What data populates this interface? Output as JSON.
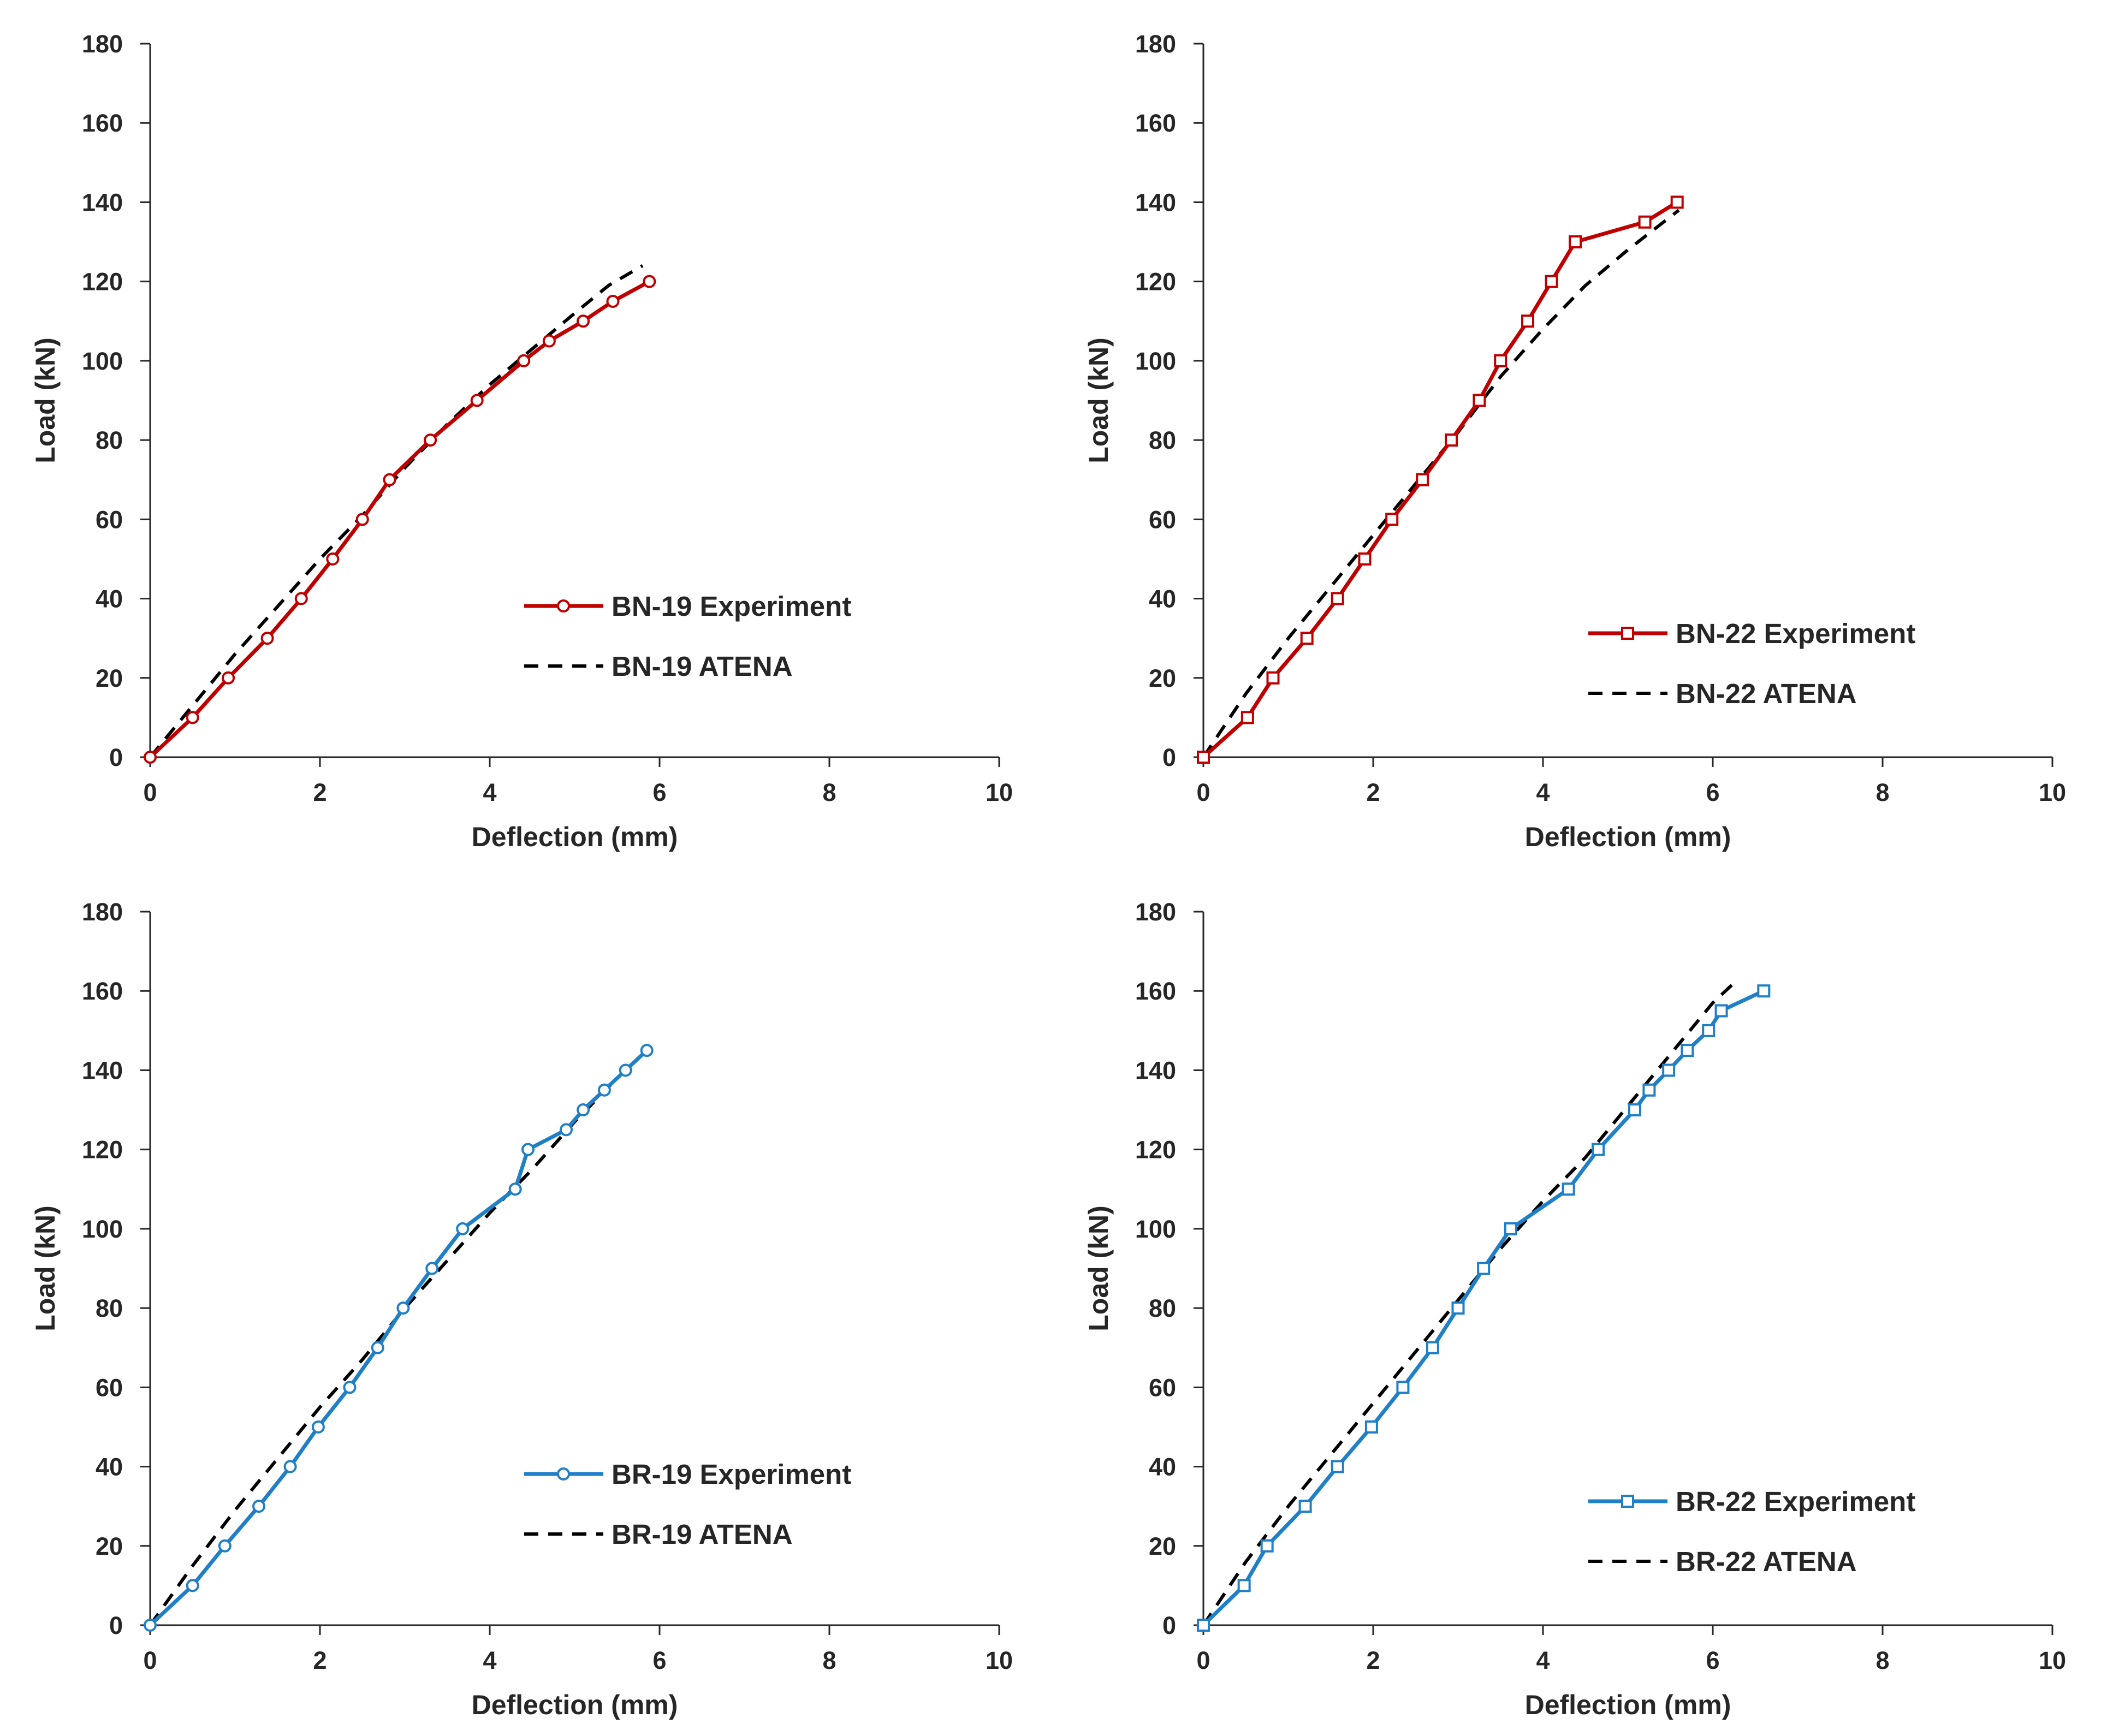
{
  "colors": {
    "red": "#c00000",
    "blue": "#1f7fc7",
    "black": "#000000",
    "axis": "#262626"
  },
  "chart_data": [
    {
      "id": "bn19",
      "type": "line",
      "xlabel": "Deflection (mm)",
      "ylabel": "Load (kN)",
      "xlim": [
        0,
        10
      ],
      "ylim": [
        0,
        180
      ],
      "xticks": [
        "0",
        "2",
        "4",
        "6",
        "8",
        "10"
      ],
      "yticks": [
        "0",
        "20",
        "40",
        "60",
        "80",
        "100",
        "120",
        "140",
        "160",
        "180"
      ],
      "legend_position": "center-right",
      "series": [
        {
          "name": "BN-19 Experiment",
          "color": "#c00000",
          "style": "solid",
          "marker": "circle",
          "x": [
            0,
            0.5,
            0.92,
            1.38,
            1.78,
            2.15,
            2.5,
            2.82,
            3.3,
            3.85,
            4.4,
            4.7,
            5.1,
            5.45,
            5.88
          ],
          "y": [
            0,
            10,
            20,
            30,
            40,
            50,
            60,
            70,
            80,
            90,
            100,
            105,
            110,
            115,
            120
          ]
        },
        {
          "name": "BN-19 ATENA",
          "color": "#000000",
          "style": "dashed",
          "marker": "none",
          "x": [
            0,
            0.5,
            1.0,
            1.5,
            2.0,
            2.5,
            3.0,
            3.5,
            4.0,
            4.5,
            5.0,
            5.4,
            5.8
          ],
          "y": [
            0,
            13,
            26,
            38,
            50,
            61,
            73,
            84,
            94,
            103,
            112,
            119,
            124
          ]
        }
      ]
    },
    {
      "id": "bn22",
      "type": "line",
      "xlabel": "Deflection (mm)",
      "ylabel": "Load (kN)",
      "xlim": [
        0,
        10
      ],
      "ylim": [
        0,
        180
      ],
      "xticks": [
        "0",
        "2",
        "4",
        "6",
        "8",
        "10"
      ],
      "yticks": [
        "0",
        "20",
        "40",
        "60",
        "80",
        "100",
        "120",
        "140",
        "160",
        "180"
      ],
      "legend_position": "bottom-right",
      "series": [
        {
          "name": "BN-22 Experiment",
          "color": "#c00000",
          "style": "solid",
          "marker": "square",
          "x": [
            0,
            0.52,
            0.82,
            1.22,
            1.58,
            1.9,
            2.22,
            2.58,
            2.92,
            3.25,
            3.5,
            3.82,
            4.1,
            4.38,
            5.2,
            5.58
          ],
          "y": [
            0,
            10,
            20,
            30,
            40,
            50,
            60,
            70,
            80,
            90,
            100,
            110,
            120,
            130,
            135,
            140
          ]
        },
        {
          "name": "BN-22 ATENA",
          "color": "#000000",
          "style": "dashed",
          "marker": "none",
          "x": [
            0,
            0.5,
            1.0,
            1.5,
            2.0,
            2.5,
            3.0,
            3.5,
            4.0,
            4.5,
            5.0,
            5.6
          ],
          "y": [
            0,
            16,
            30,
            43,
            56,
            69,
            82,
            96,
            108,
            119,
            128,
            138
          ]
        }
      ]
    },
    {
      "id": "br19",
      "type": "line",
      "xlabel": "Deflection (mm)",
      "ylabel": "Load (kN)",
      "xlim": [
        0,
        10
      ],
      "ylim": [
        0,
        180
      ],
      "xticks": [
        "0",
        "2",
        "4",
        "6",
        "8",
        "10"
      ],
      "yticks": [
        "0",
        "20",
        "40",
        "60",
        "80",
        "100",
        "120",
        "140",
        "160",
        "180"
      ],
      "legend_position": "center-right",
      "series": [
        {
          "name": "BR-19 Experiment",
          "color": "#1f7fc7",
          "style": "solid",
          "marker": "circle",
          "x": [
            0,
            0.5,
            0.88,
            1.28,
            1.65,
            1.98,
            2.35,
            2.68,
            2.98,
            3.32,
            3.68,
            4.3,
            4.45,
            4.9,
            5.1,
            5.35,
            5.6,
            5.85
          ],
          "y": [
            0,
            10,
            20,
            30,
            40,
            50,
            60,
            70,
            80,
            90,
            100,
            110,
            120,
            125,
            130,
            135,
            140,
            145
          ]
        },
        {
          "name": "BR-19 ATENA",
          "color": "#000000",
          "style": "dashed",
          "marker": "none",
          "x": [
            0,
            0.5,
            1.0,
            1.5,
            2.0,
            2.5,
            3.0,
            3.5,
            4.0,
            4.5,
            5.0,
            5.5,
            5.85
          ],
          "y": [
            0,
            15,
            29,
            42,
            55,
            67,
            80,
            92,
            104,
            115,
            127,
            138,
            145
          ]
        }
      ]
    },
    {
      "id": "br22",
      "type": "line",
      "xlabel": "Deflection (mm)",
      "ylabel": "Load (kN)",
      "xlim": [
        0,
        10
      ],
      "ylim": [
        0,
        180
      ],
      "xticks": [
        "0",
        "2",
        "4",
        "6",
        "8",
        "10"
      ],
      "yticks": [
        "0",
        "20",
        "40",
        "60",
        "80",
        "100",
        "120",
        "140",
        "160",
        "180"
      ],
      "legend_position": "bottom-right",
      "series": [
        {
          "name": "BR-22 Experiment",
          "color": "#1f7fc7",
          "style": "solid",
          "marker": "square",
          "x": [
            0,
            0.48,
            0.75,
            1.2,
            1.58,
            1.98,
            2.35,
            2.7,
            3.0,
            3.3,
            3.62,
            4.3,
            4.65,
            5.08,
            5.25,
            5.48,
            5.7,
            5.95,
            6.1,
            6.6
          ],
          "y": [
            0,
            10,
            20,
            30,
            40,
            50,
            60,
            70,
            80,
            90,
            100,
            110,
            120,
            130,
            135,
            140,
            145,
            150,
            155,
            160
          ]
        },
        {
          "name": "BR-22 ATENA",
          "color": "#000000",
          "style": "dashed",
          "marker": "none",
          "x": [
            0,
            0.5,
            1.0,
            1.5,
            2.0,
            2.5,
            3.0,
            3.5,
            4.0,
            4.5,
            5.0,
            5.5,
            6.0,
            6.3
          ],
          "y": [
            0,
            16,
            30,
            43,
            56,
            69,
            82,
            95,
            107,
            118,
            131,
            144,
            157,
            163
          ]
        }
      ]
    }
  ]
}
